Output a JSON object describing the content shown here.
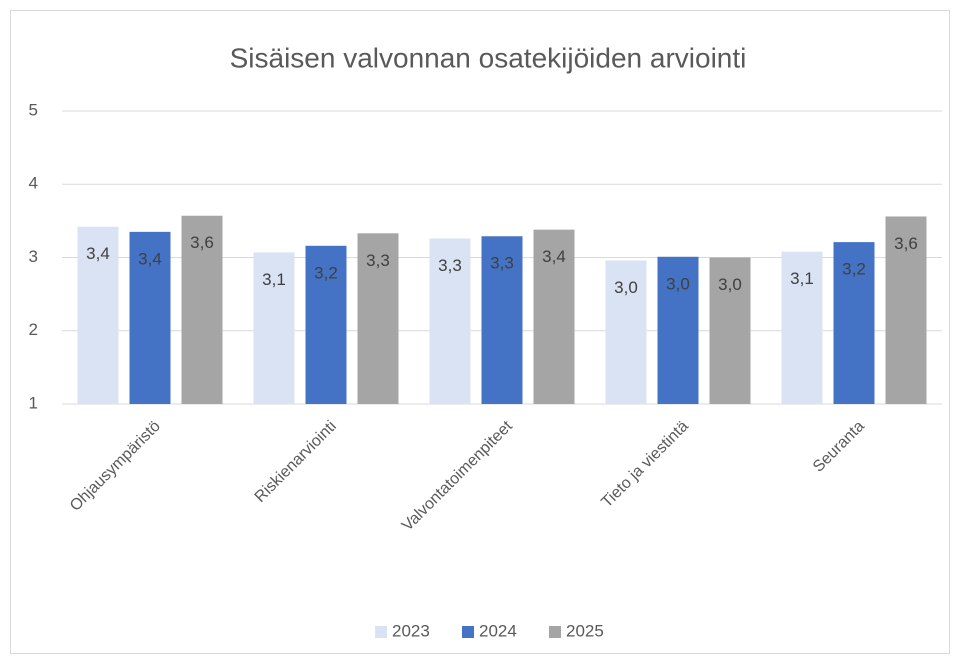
{
  "chart_data": {
    "type": "bar",
    "title": "Sisäisen valvonnan osatekijöiden arviointi",
    "categories": [
      "Ohjausympäristö",
      "Riskienarviointi",
      "Valvontatoimenpiteet",
      "Tieto ja viestintä",
      "Seuranta"
    ],
    "series": [
      {
        "name": "2023",
        "color": "#dae3f3",
        "values": [
          3.42,
          3.07,
          3.26,
          2.96,
          3.08
        ],
        "value_labels": [
          "3,4",
          "3,1",
          "3,3",
          "3,0",
          "3,1"
        ]
      },
      {
        "name": "2024",
        "color": "#4472c4",
        "values": [
          3.35,
          3.16,
          3.29,
          3.01,
          3.21
        ],
        "value_labels": [
          "3,4",
          "3,2",
          "3,3",
          "3,0",
          "3,2"
        ]
      },
      {
        "name": "2025",
        "color": "#a5a5a5",
        "values": [
          3.57,
          3.33,
          3.38,
          3.0,
          3.56
        ],
        "value_labels": [
          "3,6",
          "3,3",
          "3,4",
          "3,0",
          "3,6"
        ]
      }
    ],
    "ylim": [
      1,
      5
    ],
    "yticks": [
      1,
      2,
      3,
      4,
      5
    ],
    "grid": true,
    "legend": "bottom"
  }
}
